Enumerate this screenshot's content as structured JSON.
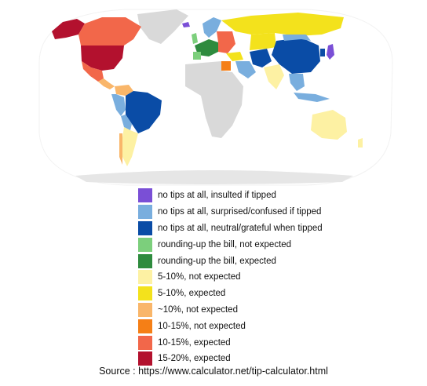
{
  "legend": [
    {
      "label": "no tips at all, insulted if tipped",
      "color": "#7a4fd6"
    },
    {
      "label": "no tips at all, surprised/confused if tipped",
      "color": "#79aede"
    },
    {
      "label": "no tips at all, neutral/grateful when tipped",
      "color": "#0a4ca6"
    },
    {
      "label": "rounding-up the bill, not expected",
      "color": "#7ccf7c"
    },
    {
      "label": "rounding-up the bill, expected",
      "color": "#2e8b3e"
    },
    {
      "label": "5-10%, not expected",
      "color": "#fdf1a3"
    },
    {
      "label": "5-10%, expected",
      "color": "#f3e21c"
    },
    {
      "label": "~10%, not expected",
      "color": "#f9b66a"
    },
    {
      "label": "10-15%, not expected",
      "color": "#f57f16"
    },
    {
      "label": "10-15%, expected",
      "color": "#f2674a"
    },
    {
      "label": "15-20%, expected",
      "color": "#b3112e"
    }
  ],
  "source": "Source : https://www.calculator.net/tip-calculator.html",
  "colors": {
    "ocean": "#ffffff",
    "no_data": "#d9d9d9",
    "border": "#ffffff"
  }
}
